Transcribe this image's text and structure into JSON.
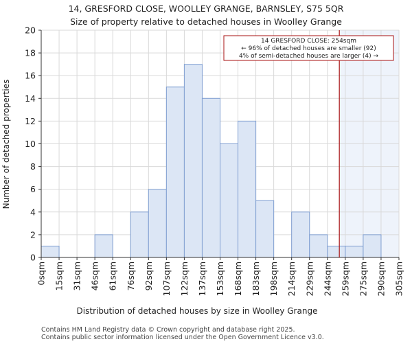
{
  "chart_data": {
    "type": "bar",
    "title": "14, GRESFORD CLOSE, WOOLLEY GRANGE, BARNSLEY, S75 5QR",
    "subtitle": "Size of property relative to detached houses in Woolley Grange",
    "xlabel": "Distribution of detached houses by size in Woolley Grange",
    "ylabel": "Number of detached properties",
    "x_tick_labels": [
      "0sqm",
      "15sqm",
      "31sqm",
      "46sqm",
      "61sqm",
      "76sqm",
      "92sqm",
      "107sqm",
      "122sqm",
      "137sqm",
      "153sqm",
      "168sqm",
      "183sqm",
      "198sqm",
      "214sqm",
      "229sqm",
      "244sqm",
      "259sqm",
      "275sqm",
      "290sqm",
      "305sqm"
    ],
    "values": [
      1,
      0,
      0,
      2,
      0,
      4,
      6,
      15,
      17,
      14,
      10,
      12,
      5,
      0,
      4,
      2,
      1,
      1,
      2,
      0
    ],
    "ylim": [
      0,
      20
    ],
    "y_ticks": [
      0,
      2,
      4,
      6,
      8,
      10,
      12,
      14,
      16,
      18,
      20
    ],
    "grid": true,
    "marker": {
      "value_sqm": 254,
      "color": "#aa1111"
    },
    "annotation": {
      "lines": [
        "14 GRESFORD CLOSE: 254sqm",
        "← 96% of detached houses are smaller (92)",
        "4% of semi-detached houses are larger (4) →"
      ],
      "border_color": "#aa1111"
    },
    "colors": {
      "bar_fill": "#dce6f5",
      "bar_stroke": "#7f9ed1",
      "highlight_region": "#eef3fb",
      "grid": "#d9d9d9"
    }
  },
  "footer": {
    "line1": "Contains HM Land Registry data © Crown copyright and database right 2025.",
    "line2": "Contains public sector information licensed under the Open Government Licence v3.0."
  }
}
